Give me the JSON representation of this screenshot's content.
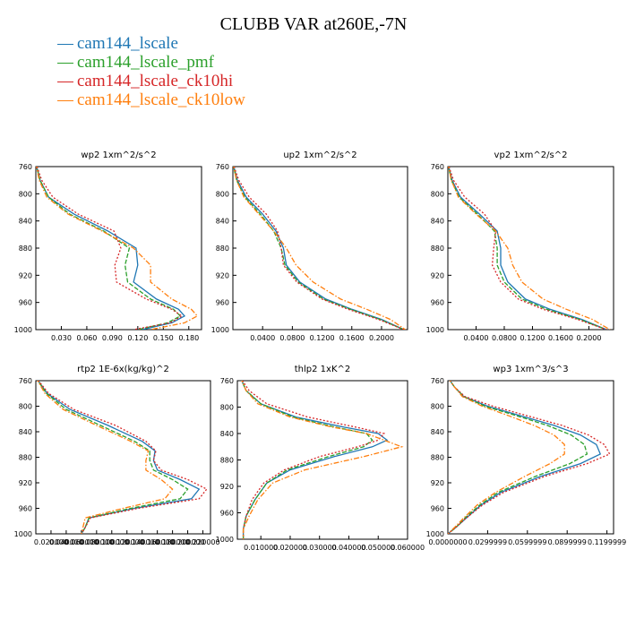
{
  "figure": {
    "title": "CLUBB VAR at260E,-7N",
    "legend": [
      {
        "name": "cam144_lscale",
        "color": "#1f77b4"
      },
      {
        "name": "cam144_lscale_pmf",
        "color": "#2ca02c"
      },
      {
        "name": "cam144_lscale_ck10hi",
        "color": "#d62728"
      },
      {
        "name": "cam144_lscale_ck10low",
        "color": "#ff7f0e"
      }
    ]
  },
  "chart_data": [
    {
      "type": "line",
      "title": "wp2  1xm^2/s^2",
      "xlabel": "",
      "ylabel": "",
      "xlim": [
        0.0,
        0.195
      ],
      "ylim": [
        760,
        1000
      ],
      "y_inverted": true,
      "xticks": [
        0.03,
        0.06,
        0.09,
        0.12,
        0.15,
        0.18
      ],
      "xtick_labels": [
        "0.030",
        "0.060",
        "0.090",
        "0.120",
        "0.150",
        "0.180"
      ],
      "yticks": [
        760,
        800,
        840,
        880,
        920,
        960,
        1000
      ],
      "y": [
        755,
        780,
        805,
        830,
        855,
        880,
        905,
        930,
        955,
        970,
        980,
        990,
        1000
      ],
      "series": [
        {
          "name": "cam144_lscale",
          "color": "#1f77b4",
          "dash": "solid",
          "x": [
            0.0,
            0.005,
            0.015,
            0.045,
            0.085,
            0.118,
            0.12,
            0.115,
            0.142,
            0.168,
            0.175,
            0.16,
            0.125
          ]
        },
        {
          "name": "cam144_lscale_pmf",
          "color": "#2ca02c",
          "dash": "dash",
          "x": [
            0.0,
            0.005,
            0.015,
            0.04,
            0.08,
            0.11,
            0.105,
            0.108,
            0.135,
            0.162,
            0.17,
            0.155,
            0.12
          ]
        },
        {
          "name": "cam144_lscale_ck10hi",
          "color": "#d62728",
          "dash": "dot",
          "x": [
            0.0,
            0.007,
            0.02,
            0.05,
            0.092,
            0.1,
            0.093,
            0.095,
            0.13,
            0.16,
            0.172,
            0.158,
            0.115
          ]
        },
        {
          "name": "cam144_lscale_ck10low",
          "color": "#ff7f0e",
          "dash": "dashdot",
          "x": [
            0.0,
            0.004,
            0.013,
            0.038,
            0.078,
            0.115,
            0.135,
            0.135,
            0.16,
            0.183,
            0.19,
            0.175,
            0.135
          ]
        }
      ]
    },
    {
      "type": "line",
      "title": "up2  1xm^2/s^2",
      "xlabel": "",
      "ylabel": "",
      "xlim": [
        0.0,
        0.235
      ],
      "ylim": [
        760,
        1000
      ],
      "y_inverted": true,
      "xticks": [
        0.04,
        0.08,
        0.12,
        0.16,
        0.2
      ],
      "xtick_labels": [
        "0.0400",
        "0.0800",
        "0.1200",
        "0.1600",
        "0.2000"
      ],
      "yticks": [
        760,
        800,
        840,
        880,
        920,
        960,
        1000
      ],
      "y": [
        755,
        780,
        805,
        830,
        855,
        880,
        905,
        930,
        955,
        970,
        985,
        1000
      ],
      "series": [
        {
          "name": "cam144_lscale",
          "color": "#1f77b4",
          "dash": "solid",
          "x": [
            0.0,
            0.006,
            0.018,
            0.04,
            0.058,
            0.068,
            0.072,
            0.09,
            0.125,
            0.16,
            0.2,
            0.23
          ]
        },
        {
          "name": "cam144_lscale_pmf",
          "color": "#2ca02c",
          "dash": "dash",
          "x": [
            0.0,
            0.005,
            0.016,
            0.037,
            0.055,
            0.065,
            0.07,
            0.088,
            0.122,
            0.158,
            0.198,
            0.23
          ]
        },
        {
          "name": "cam144_lscale_ck10hi",
          "color": "#d62728",
          "dash": "dot",
          "x": [
            0.0,
            0.008,
            0.022,
            0.045,
            0.06,
            0.065,
            0.068,
            0.086,
            0.12,
            0.155,
            0.196,
            0.23
          ]
        },
        {
          "name": "cam144_lscale_ck10low",
          "color": "#ff7f0e",
          "dash": "dashdot",
          "x": [
            0.0,
            0.005,
            0.015,
            0.035,
            0.055,
            0.072,
            0.085,
            0.108,
            0.145,
            0.18,
            0.212,
            0.232
          ]
        }
      ]
    },
    {
      "type": "line",
      "title": "vp2  1xm^2/s^2",
      "xlabel": "",
      "ylabel": "",
      "xlim": [
        0.0,
        0.235
      ],
      "ylim": [
        760,
        1000
      ],
      "y_inverted": true,
      "xticks": [
        0.04,
        0.08,
        0.12,
        0.16,
        0.2
      ],
      "xtick_labels": [
        "0.0400",
        "0.0800",
        "0.1200",
        "0.1600",
        "0.2000"
      ],
      "yticks": [
        760,
        800,
        840,
        880,
        920,
        960,
        1000
      ],
      "y": [
        755,
        780,
        805,
        830,
        855,
        880,
        905,
        930,
        955,
        970,
        985,
        1000
      ],
      "series": [
        {
          "name": "cam144_lscale",
          "color": "#1f77b4",
          "dash": "solid",
          "x": [
            0.0,
            0.006,
            0.018,
            0.045,
            0.07,
            0.075,
            0.075,
            0.085,
            0.11,
            0.145,
            0.19,
            0.225
          ]
        },
        {
          "name": "cam144_lscale_pmf",
          "color": "#2ca02c",
          "dash": "dash",
          "x": [
            0.0,
            0.005,
            0.016,
            0.042,
            0.066,
            0.07,
            0.07,
            0.08,
            0.105,
            0.14,
            0.187,
            0.225
          ]
        },
        {
          "name": "cam144_lscale_ck10hi",
          "color": "#d62728",
          "dash": "dot",
          "x": [
            0.0,
            0.008,
            0.024,
            0.052,
            0.068,
            0.065,
            0.063,
            0.075,
            0.1,
            0.135,
            0.184,
            0.225
          ]
        },
        {
          "name": "cam144_lscale_ck10low",
          "color": "#ff7f0e",
          "dash": "dashdot",
          "x": [
            0.0,
            0.005,
            0.015,
            0.04,
            0.068,
            0.085,
            0.092,
            0.105,
            0.135,
            0.168,
            0.205,
            0.23
          ]
        }
      ]
    },
    {
      "type": "line",
      "title": "rtp2  1E-6x(kg/kg)^2",
      "xlabel": "",
      "ylabel": "",
      "xlim": [
        0.0,
        0.23
      ],
      "ylim": [
        760,
        1000
      ],
      "y_inverted": true,
      "xticks": [
        0.02,
        0.04,
        0.06,
        0.08,
        0.1,
        0.12,
        0.14,
        0.16,
        0.18,
        0.2,
        0.22
      ],
      "xtick_labels": [
        "0.020000",
        "0.040000",
        "0.060000",
        "0.080000",
        "0.100000",
        "0.120000",
        "0.140000",
        "0.160000",
        "0.180000",
        "0.200000",
        "0.220000"
      ],
      "yticks": [
        760,
        800,
        840,
        880,
        920,
        960,
        1000
      ],
      "y": [
        755,
        780,
        805,
        830,
        855,
        870,
        885,
        900,
        915,
        930,
        945,
        960,
        975,
        990,
        1000
      ],
      "series": [
        {
          "name": "cam144_lscale",
          "color": "#1f77b4",
          "dash": "solid",
          "x": [
            0.0,
            0.015,
            0.045,
            0.095,
            0.14,
            0.157,
            0.155,
            0.16,
            0.19,
            0.215,
            0.205,
            0.13,
            0.07,
            0.065,
            0.06
          ]
        },
        {
          "name": "cam144_lscale_pmf",
          "color": "#2ca02c",
          "dash": "dash",
          "x": [
            0.0,
            0.014,
            0.04,
            0.085,
            0.13,
            0.15,
            0.15,
            0.155,
            0.18,
            0.2,
            0.19,
            0.125,
            0.07,
            0.065,
            0.06
          ]
        },
        {
          "name": "cam144_lscale_ck10hi",
          "color": "#d62728",
          "dash": "dot",
          "x": [
            0.0,
            0.017,
            0.05,
            0.105,
            0.145,
            0.158,
            0.155,
            0.165,
            0.2,
            0.225,
            0.215,
            0.135,
            0.072,
            0.065,
            0.06
          ]
        },
        {
          "name": "cam144_lscale_ck10low",
          "color": "#ff7f0e",
          "dash": "dashdot",
          "x": [
            0.0,
            0.012,
            0.036,
            0.08,
            0.125,
            0.148,
            0.145,
            0.145,
            0.165,
            0.18,
            0.17,
            0.115,
            0.065,
            0.062,
            0.06
          ]
        }
      ]
    },
    {
      "type": "line",
      "title": "thlp2  1xK^2",
      "xlabel": "",
      "ylabel": "",
      "xlim": [
        0.002,
        0.06
      ],
      "ylim": [
        760,
        1000
      ],
      "y_inverted": true,
      "xticks": [
        0.01,
        0.02,
        0.03,
        0.04,
        0.05,
        0.06
      ],
      "xtick_labels": [
        "0.010000",
        "0.020000",
        "0.030000",
        "0.040000",
        "0.050000",
        "0.060000"
      ],
      "yticks": [
        760,
        800,
        840,
        880,
        920,
        960,
        1000
      ],
      "y": [
        755,
        775,
        795,
        815,
        830,
        840,
        850,
        860,
        875,
        895,
        915,
        940,
        965,
        985,
        1000
      ],
      "series": [
        {
          "name": "cam144_lscale",
          "color": "#1f77b4",
          "dash": "solid",
          "x": [
            0.003,
            0.005,
            0.01,
            0.022,
            0.038,
            0.05,
            0.053,
            0.048,
            0.035,
            0.02,
            0.012,
            0.008,
            0.005,
            0.004,
            0.004
          ]
        },
        {
          "name": "cam144_lscale_pmf",
          "color": "#2ca02c",
          "dash": "dash",
          "x": [
            0.003,
            0.005,
            0.01,
            0.021,
            0.035,
            0.046,
            0.048,
            0.045,
            0.033,
            0.019,
            0.012,
            0.008,
            0.005,
            0.004,
            0.004
          ]
        },
        {
          "name": "cam144_lscale_ck10hi",
          "color": "#d62728",
          "dash": "dot",
          "x": [
            0.003,
            0.006,
            0.012,
            0.026,
            0.042,
            0.052,
            0.05,
            0.043,
            0.03,
            0.018,
            0.011,
            0.007,
            0.005,
            0.004,
            0.004
          ]
        },
        {
          "name": "cam144_lscale_ck10low",
          "color": "#ff7f0e",
          "dash": "dashdot",
          "x": [
            0.003,
            0.005,
            0.009,
            0.02,
            0.034,
            0.046,
            0.052,
            0.058,
            0.045,
            0.025,
            0.014,
            0.009,
            0.006,
            0.004,
            0.004
          ]
        }
      ]
    },
    {
      "type": "line",
      "title": "wp3  1xm^3/s^3",
      "xlabel": "",
      "ylabel": "",
      "xlim": [
        0.0,
        0.125
      ],
      "ylim": [
        760,
        1000
      ],
      "y_inverted": true,
      "xticks": [
        0.0,
        0.03,
        0.06,
        0.09,
        0.12
      ],
      "xtick_labels": [
        "0.0000000",
        "0.0299999",
        "0.0599999",
        "0.0899999",
        "0.1199999"
      ],
      "yticks": [
        760,
        800,
        840,
        880,
        920,
        960,
        1000
      ],
      "y": [
        755,
        770,
        785,
        800,
        815,
        830,
        845,
        860,
        875,
        890,
        910,
        935,
        955,
        975,
        990,
        1000
      ],
      "series": [
        {
          "name": "cam144_lscale",
          "color": "#1f77b4",
          "dash": "solid",
          "x": [
            0.0,
            0.005,
            0.012,
            0.03,
            0.055,
            0.08,
            0.1,
            0.112,
            0.115,
            0.1,
            0.07,
            0.04,
            0.025,
            0.014,
            0.006,
            0.0
          ]
        },
        {
          "name": "cam144_lscale_pmf",
          "color": "#2ca02c",
          "dash": "dash",
          "x": [
            0.0,
            0.005,
            0.012,
            0.028,
            0.052,
            0.075,
            0.093,
            0.103,
            0.105,
            0.092,
            0.066,
            0.038,
            0.024,
            0.013,
            0.006,
            0.0
          ]
        },
        {
          "name": "cam144_lscale_ck10hi",
          "color": "#d62728",
          "dash": "dot",
          "x": [
            0.0,
            0.005,
            0.013,
            0.034,
            0.06,
            0.086,
            0.106,
            0.118,
            0.122,
            0.105,
            0.073,
            0.042,
            0.026,
            0.014,
            0.006,
            0.0
          ]
        },
        {
          "name": "cam144_lscale_ck10low",
          "color": "#ff7f0e",
          "dash": "dashdot",
          "x": [
            0.0,
            0.005,
            0.011,
            0.026,
            0.046,
            0.065,
            0.08,
            0.088,
            0.088,
            0.077,
            0.058,
            0.036,
            0.022,
            0.012,
            0.005,
            0.0
          ]
        }
      ]
    }
  ]
}
